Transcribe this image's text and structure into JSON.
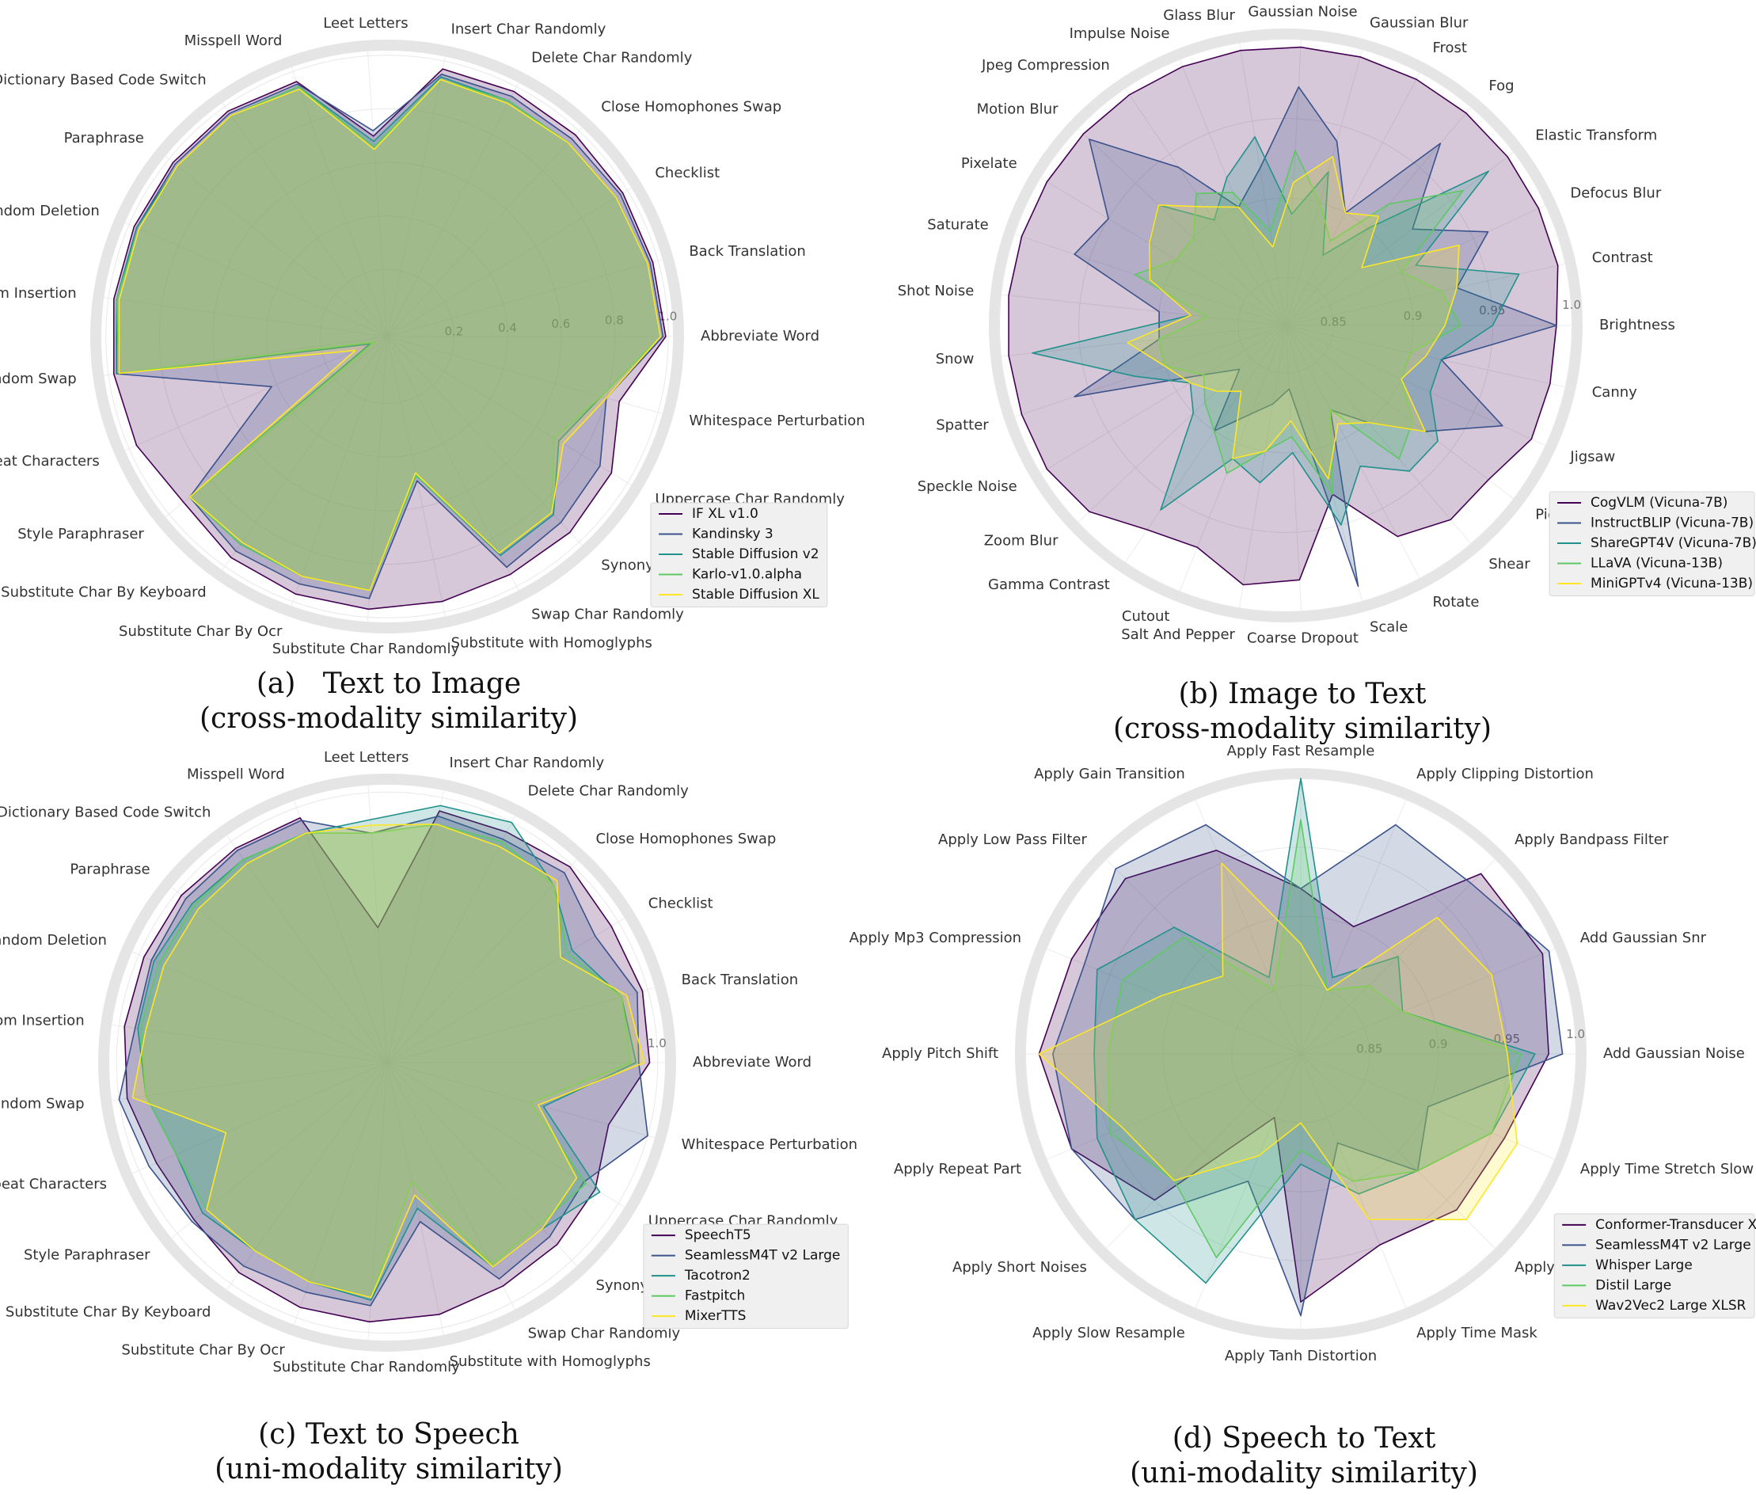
{
  "chart_data": [
    {
      "type": "radar",
      "title": "(a)   Text to Image",
      "subtitle": "(cross-modality similarity)",
      "categories": [
        "Abbreviate Word",
        "Back Translation",
        "Checklist",
        "Close Homophones Swap",
        "Delete Char Randomly",
        "Insert Char Randomly",
        "Leet Letters",
        "Misspell Word",
        "Multilingual Dictionary Based Code Switch",
        "Paraphrase",
        "Random Deletion",
        "Random Insertion",
        "Random Swap",
        "Repeat Characters",
        "Style Paraphraser",
        "Substitute Char By Keyboard",
        "Substitute Char By Ocr",
        "Substitute Char Randomly",
        "Substitute with Homoglyphs",
        "Swap Char Randomly",
        "Synonym Replacement",
        "Uppercase Char Randomly",
        "Whitespace Perturbation"
      ],
      "series": [
        {
          "name": "IF XL v1.0",
          "color": "#440154",
          "values": [
            0.99,
            0.98,
            0.98,
            0.98,
            0.98,
            0.97,
            0.7,
            0.96,
            0.98,
            0.98,
            0.98,
            0.98,
            0.98,
            0.97,
            0.93,
            0.96,
            0.97,
            0.97,
            0.96,
            0.95,
            0.95,
            0.93,
            0.85
          ]
        },
        {
          "name": "Kandinsky 3",
          "color": "#3b528b",
          "values": [
            0.98,
            0.97,
            0.97,
            0.96,
            0.96,
            0.95,
            0.72,
            0.95,
            0.97,
            0.97,
            0.97,
            0.97,
            0.97,
            0.42,
            0.9,
            0.93,
            0.93,
            0.93,
            0.5,
            0.92,
            0.9,
            0.88,
            0.8
          ]
        },
        {
          "name": "Stable Diffusion v2",
          "color": "#21918c",
          "values": [
            0.97,
            0.96,
            0.95,
            0.94,
            0.94,
            0.94,
            0.68,
            0.94,
            0.96,
            0.96,
            0.97,
            0.97,
            0.97,
            0.02,
            0.9,
            0.9,
            0.9,
            0.9,
            0.48,
            0.87,
            0.86,
            0.7,
            0.78
          ]
        },
        {
          "name": "Karlo-v1.0.alpha",
          "color": "#5ec962",
          "values": [
            0.97,
            0.96,
            0.95,
            0.94,
            0.94,
            0.93,
            0.66,
            0.94,
            0.96,
            0.96,
            0.96,
            0.97,
            0.96,
            0.0,
            0.9,
            0.9,
            0.9,
            0.9,
            0.48,
            0.86,
            0.85,
            0.68,
            0.78
          ]
        },
        {
          "name": "Stable Diffusion XL",
          "color": "#fde725",
          "values": [
            0.97,
            0.96,
            0.95,
            0.94,
            0.93,
            0.93,
            0.65,
            0.93,
            0.96,
            0.96,
            0.96,
            0.96,
            0.96,
            0.08,
            0.9,
            0.89,
            0.9,
            0.9,
            0.47,
            0.86,
            0.85,
            0.72,
            0.8
          ]
        }
      ],
      "rlim": [
        -0.05,
        1.02
      ],
      "rticks": [
        0.2,
        0.4,
        0.6,
        0.8,
        {
          "value": 1,
          "label": "1.0"
        }
      ],
      "legend": "lower right"
    },
    {
      "type": "radar",
      "title": "(b) Image to Text",
      "subtitle": "(cross-modality similarity)",
      "categories": [
        "Brightness",
        "Contrast",
        "Defocus Blur",
        "Elastic Transform",
        "Fog",
        "Frost",
        "Gaussian Blur",
        "Gaussian Noise",
        "Glass Blur",
        "Impulse Noise",
        "Jpeg Compression",
        "Motion Blur",
        "Pixelate",
        "Saturate",
        "Shot Noise",
        "Snow",
        "Spatter",
        "Speckle Noise",
        "Zoom Blur",
        "Gamma Contrast",
        "Cutout",
        "Salt And Pepper",
        "Coarse Dropout",
        "Scale",
        "Rotate",
        "Shear",
        "Piecewise Affine",
        "Jigsaw",
        "Canny"
      ],
      "series": [
        {
          "name": "CogVLM (Vicuna-7B)",
          "color": "#440154",
          "values": [
            0.99,
            0.995,
            0.995,
            0.995,
            0.995,
            0.995,
            0.995,
            0.995,
            0.995,
            0.995,
            0.995,
            0.995,
            0.995,
            0.995,
            0.995,
            0.995,
            0.995,
            0.995,
            0.99,
            0.975,
            0.97,
            0.985,
            0.98,
            0.93,
            0.97,
            0.98,
            0.98,
            0.99,
            0.99
          ]
        },
        {
          "name": "InstructBLIP (Vicuna-7B)",
          "color": "#3b528b",
          "values": [
            0.99,
            0.93,
            0.96,
            0.92,
            0.97,
            0.9,
            0.94,
            0.97,
            0.92,
            0.9,
            0.94,
            0.99,
            0.95,
            0.96,
            0.9,
            0.9,
            0.96,
            0.88,
            0.86,
            0.9,
            0.88,
            0.87,
            0.86,
            0.99,
            0.88,
            0.9,
            0.93,
            0.97,
            0.92
          ]
        },
        {
          "name": "ShareGPT4V (Vicuna-7B)",
          "color": "#21918c",
          "values": [
            0.95,
            0.97,
            0.91,
            0.98,
            0.9,
            0.87,
            0.92,
            0.89,
            0.94,
            0.92,
            0.9,
            0.93,
            0.92,
            0.91,
            0.88,
            0.98,
            0.92,
            0.89,
            0.9,
            0.96,
            0.91,
            0.92,
            0.9,
            0.95,
            0.92,
            0.94,
            0.94,
            0.92,
            0.92
          ]
        },
        {
          "name": "LLaVA (Vicuna-13B)",
          "color": "#5ec962",
          "values": [
            0.93,
            0.92,
            0.9,
            0.96,
            0.92,
            0.88,
            0.9,
            0.93,
            0.88,
            0.91,
            0.92,
            0.9,
            0.9,
            0.92,
            0.87,
            0.9,
            0.9,
            0.88,
            0.89,
            0.9,
            0.92,
            0.9,
            0.89,
            0.93,
            0.88,
            0.93,
            0.92,
            0.9,
            0.9
          ]
        },
        {
          "name": "MiniGPTv4 (Vicuna-13B)",
          "color": "#fde725",
          "values": [
            0.92,
            0.93,
            0.94,
            0.88,
            0.91,
            0.9,
            0.93,
            0.91,
            0.87,
            0.9,
            0.91,
            0.93,
            0.92,
            0.91,
            0.88,
            0.92,
            0.9,
            0.89,
            0.88,
            0.87,
            0.91,
            0.9,
            0.88,
            0.92,
            0.89,
            0.9,
            0.93,
            0.9,
            0.91
          ]
        }
      ],
      "rlim": [
        0.82,
        1.0
      ],
      "rticks": [
        0.85,
        0.9,
        0.95,
        {
          "value": 1,
          "label": "1.0"
        }
      ],
      "legend": "lower right"
    },
    {
      "type": "radar",
      "title": "(c) Text to Speech",
      "subtitle": "(uni-modality similarity)",
      "categories": [
        "Abbreviate Word",
        "Back Translation",
        "Checklist",
        "Close Homophones Swap",
        "Delete Char Randomly",
        "Insert Char Randomly",
        "Leet Letters",
        "Misspell Word",
        "Multilingual Dictionary Based Code Switch",
        "Paraphrase",
        "Random Deletion",
        "Random Insertion",
        "Random Swap",
        "Repeat Characters",
        "Style Paraphraser",
        "Substitute Char By Keyboard",
        "Substitute Char By Ocr",
        "Substitute Char Randomly",
        "Substitute with Homoglyphs",
        "Swap Char Randomly",
        "Synonym Replacement",
        "Uppercase Char Randomly",
        "Whitespace Perturbation"
      ],
      "series": [
        {
          "name": "SpeechT5",
          "color": "#440154",
          "values": [
            0.97,
            0.98,
            0.97,
            0.99,
            0.96,
            0.95,
            0.5,
            0.96,
            0.97,
            0.98,
            0.98,
            0.98,
            0.97,
            0.93,
            0.92,
            0.95,
            0.96,
            0.96,
            0.95,
            0.93,
            0.92,
            0.9,
            0.85
          ]
        },
        {
          "name": "SeamlessM4T v2 Large",
          "color": "#3b528b",
          "values": [
            0.93,
            0.96,
            0.9,
            0.96,
            0.93,
            0.93,
            0.85,
            0.95,
            0.96,
            0.96,
            0.95,
            0.94,
            1.0,
            0.96,
            0.93,
            0.92,
            0.9,
            0.9,
            0.6,
            0.9,
            0.88,
            0.85,
            1.0
          ]
        },
        {
          "name": "Tacotron2",
          "color": "#21918c",
          "values": [
            0.92,
            0.9,
            0.8,
            0.9,
            1.0,
            0.97,
            0.9,
            0.9,
            0.92,
            0.93,
            0.94,
            0.93,
            0.9,
            0.85,
            0.88,
            0.85,
            0.86,
            0.88,
            0.55,
            0.85,
            0.84,
            0.92,
            0.6
          ]
        },
        {
          "name": "Fastpitch",
          "color": "#5ec962",
          "values": [
            0.9,
            0.9,
            0.78,
            0.9,
            0.92,
            0.9,
            0.85,
            0.9,
            0.92,
            0.92,
            0.92,
            0.92,
            0.9,
            0.85,
            0.86,
            0.85,
            0.86,
            0.87,
            0.45,
            0.84,
            0.82,
            0.86,
            0.55
          ]
        },
        {
          "name": "MixerTTS",
          "color": "#fde725",
          "values": [
            0.95,
            0.92,
            0.75,
            0.92,
            0.9,
            0.9,
            0.88,
            0.9,
            0.9,
            0.9,
            0.9,
            0.9,
            0.95,
            0.65,
            0.86,
            0.85,
            0.86,
            0.87,
            0.5,
            0.85,
            0.84,
            0.82,
            0.58
          ]
        }
      ],
      "rlim": [
        0,
        1.03
      ],
      "rticks": [
        {
          "value": 1,
          "label": "1.0"
        }
      ],
      "legend": "lower right"
    },
    {
      "type": "radar",
      "title": "(d) Speech to Text",
      "subtitle": "(uni-modality similarity)",
      "categories": [
        "Add Gaussian Noise",
        "Add Gaussian Snr",
        "Apply Bandpass Filter",
        "Apply Clipping Distortion",
        "Apply Fast Resample",
        "Apply Gain Transition",
        "Apply Low Pass Filter",
        "Apply Mp3 Compression",
        "Apply Pitch Shift",
        "Apply Repeat Part",
        "Apply Short Noises",
        "Apply Slow Resample",
        "Apply Tanh Distortion",
        "Apply Time Mask",
        "Apply Time Stretch Fast",
        "Apply Time Stretch Slow"
      ],
      "series": [
        {
          "name": "Conformer-Transducer XLarge",
          "color": "#440154",
          "values": [
            0.98,
            0.99,
            0.985,
            0.9,
            0.92,
            0.96,
            0.98,
            0.98,
            0.99,
            0.98,
            0.95,
            0.85,
            0.98,
            0.95,
            0.96,
            0.96
          ]
        },
        {
          "name": "SeamlessM4T v2 Large",
          "color": "#3b528b",
          "values": [
            0.99,
            0.995,
            0.975,
            0.98,
            0.92,
            0.98,
            0.99,
            0.97,
            0.98,
            0.98,
            0.97,
            0.9,
            0.99,
            0.87,
            0.92,
            0.9
          ]
        },
        {
          "name": "Whisper Large",
          "color": "#21918c",
          "values": [
            0.97,
            0.88,
            0.9,
            0.86,
            1.0,
            0.86,
            0.93,
            0.96,
            0.95,
            0.96,
            0.97,
            0.98,
            0.88,
            0.91,
            0.92,
            0.95
          ]
        },
        {
          "name": "Distil Large",
          "color": "#5ec962",
          "values": [
            0.96,
            0.88,
            0.87,
            0.85,
            0.97,
            0.85,
            0.92,
            0.94,
            0.94,
            0.95,
            0.93,
            0.96,
            0.87,
            0.9,
            0.92,
            0.95
          ]
        },
        {
          "name": "Wav2Vec2 Large XLSR",
          "color": "#fde725",
          "values": [
            0.95,
            0.95,
            0.94,
            0.85,
            0.88,
            0.95,
            0.88,
            0.91,
            0.99,
            0.94,
            0.93,
            0.88,
            0.85,
            0.93,
            0.97,
            0.97
          ]
        }
      ],
      "rlim": [
        0.8,
        1.0
      ],
      "rticks": [
        0.85,
        0.9,
        {
          "value": 0.95,
          "label": "0.95"
        },
        {
          "value": 1,
          "label": "1.0"
        }
      ],
      "legend": "lower right"
    }
  ]
}
